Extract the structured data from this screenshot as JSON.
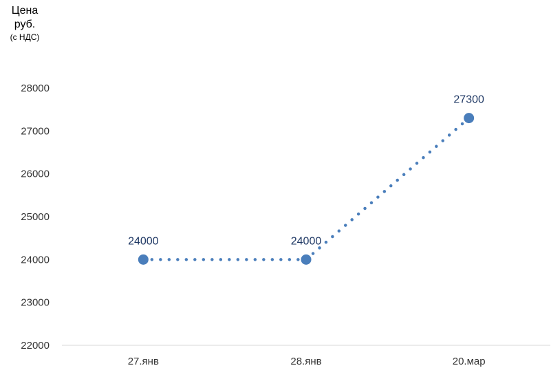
{
  "chart_data": {
    "type": "line",
    "title": "",
    "ylabel_lines": [
      "Цена",
      "руб.",
      "(с НДС)"
    ],
    "xlabel": "",
    "categories": [
      "27.янв",
      "28.янв",
      "20.мар"
    ],
    "series": [
      {
        "values": [
          24000,
          24000,
          27300
        ]
      }
    ],
    "data_labels": [
      "24000",
      "24000",
      "27300"
    ],
    "ylim": [
      22000,
      28000
    ],
    "yticks": [
      22000,
      23000,
      24000,
      25000,
      26000,
      27000,
      28000
    ],
    "line_style": "dotted",
    "marker": "circle",
    "grid": false,
    "colors": {
      "series": "#4a7ebb",
      "label": "#1f3864",
      "axis": "#d9d9d9",
      "tick": "#333333"
    }
  }
}
